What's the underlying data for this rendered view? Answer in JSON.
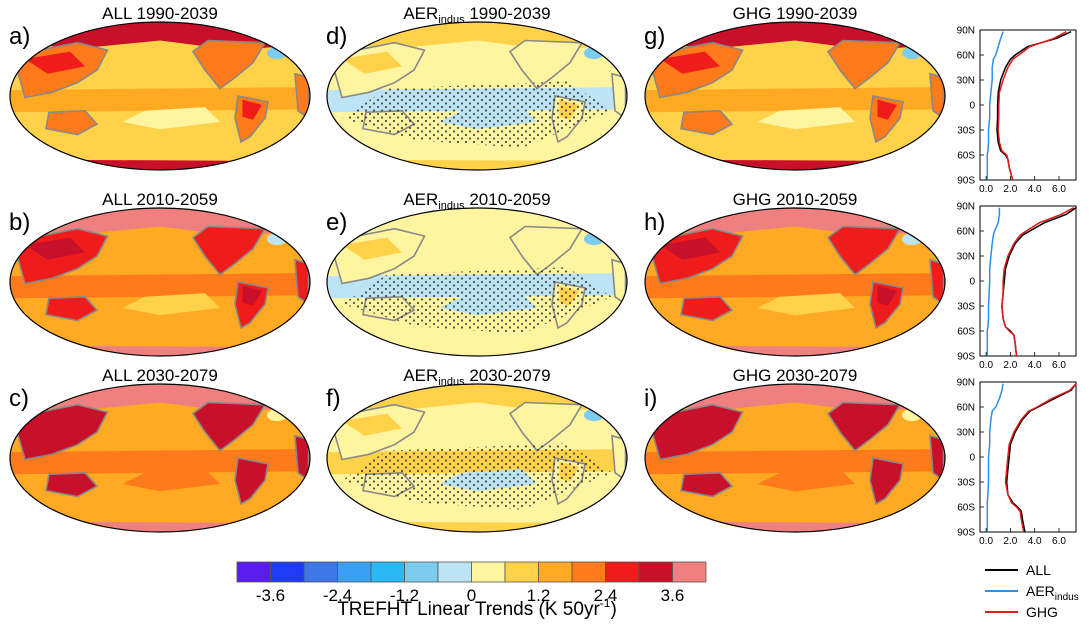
{
  "figure": {
    "panels": [
      {
        "letter": "a)",
        "prefix": "ALL",
        "sub": "",
        "period": "1990-2039",
        "style": "all1"
      },
      {
        "letter": "b)",
        "prefix": "ALL",
        "sub": "",
        "period": "2010-2059",
        "style": "all2"
      },
      {
        "letter": "c)",
        "prefix": "ALL",
        "sub": "",
        "period": "2030-2079",
        "style": "all3"
      },
      {
        "letter": "d)",
        "prefix": "AER",
        "sub": "indus",
        "period": "1990-2039",
        "style": "aer1"
      },
      {
        "letter": "e)",
        "prefix": "AER",
        "sub": "indus",
        "period": "2010-2059",
        "style": "aer2"
      },
      {
        "letter": "f)",
        "prefix": "AER",
        "sub": "indus",
        "period": "2030-2079",
        "style": "aer3"
      },
      {
        "letter": "g)",
        "prefix": "GHG",
        "sub": "",
        "period": "1990-2039",
        "style": "ghg1"
      },
      {
        "letter": "h)",
        "prefix": "GHG",
        "sub": "",
        "period": "2010-2059",
        "style": "ghg2"
      },
      {
        "letter": "i)",
        "prefix": "GHG",
        "sub": "",
        "period": "2030-2079",
        "style": "ghg3"
      }
    ],
    "colorbar": {
      "colors": [
        "#5a1df0",
        "#1e3cf5",
        "#3f78e6",
        "#3a9ff0",
        "#2ab8f5",
        "#7ecbf0",
        "#bde4f4",
        "#fff5a0",
        "#ffd24a",
        "#ffaa22",
        "#ff7a1a",
        "#f01b1b",
        "#c8102a",
        "#f08080"
      ],
      "tick_labels": [
        "-3.6",
        "-2.4",
        "-1.2",
        "0",
        "1.2",
        "2.4",
        "3.6"
      ],
      "title_main": "TREFHT Linear Trends (K 50yr",
      "title_sup": "-1",
      "title_close": ")"
    },
    "legend": [
      {
        "label": "ALL",
        "sub": "",
        "color": "#000000"
      },
      {
        "label": "AER",
        "sub": "indus",
        "color": "#2d8fe6"
      },
      {
        "label": "GHG",
        "sub": "",
        "color": "#e01c1c"
      }
    ]
  },
  "chart_data": [
    {
      "type": "line",
      "title": "",
      "xlabel": "",
      "ylabel": "",
      "ytick_labels": [
        "90N",
        "60N",
        "30N",
        "0",
        "30S",
        "60S",
        "90S"
      ],
      "xtick_labels": [
        "0.0",
        "2.0",
        "4.0",
        "6.0"
      ],
      "xlim": [
        -0.5,
        7.4
      ],
      "ylim": [
        -90,
        90
      ],
      "grid": false,
      "latitudes": [
        -90,
        -75,
        -65,
        -60,
        -55,
        -45,
        -30,
        -15,
        0,
        15,
        30,
        45,
        55,
        60,
        70,
        80,
        88
      ],
      "series": [
        {
          "name": "ALL",
          "values": [
            2.2,
            1.9,
            1.8,
            1.6,
            1.2,
            1.0,
            0.9,
            0.95,
            0.95,
            1.0,
            1.2,
            1.6,
            2.0,
            2.4,
            3.4,
            5.8,
            7.0
          ]
        },
        {
          "name": "AER",
          "values": [
            0.1,
            0.1,
            0.1,
            0.1,
            0.15,
            0.2,
            0.2,
            0.3,
            0.3,
            0.4,
            0.5,
            0.5,
            0.6,
            0.8,
            1.0,
            1.2,
            1.4
          ]
        },
        {
          "name": "GHG",
          "values": [
            2.2,
            1.9,
            1.8,
            1.7,
            1.3,
            1.1,
            1.0,
            1.05,
            1.05,
            1.1,
            1.4,
            1.8,
            2.2,
            2.7,
            3.6,
            5.6,
            6.6
          ]
        }
      ]
    },
    {
      "type": "line",
      "title": "",
      "xlabel": "",
      "ylabel": "",
      "ytick_labels": [
        "90N",
        "60N",
        "30N",
        "0",
        "30S",
        "60S",
        "90S"
      ],
      "xtick_labels": [
        "0.0",
        "2.0",
        "4.0",
        "6.0"
      ],
      "xlim": [
        -0.5,
        7.4
      ],
      "ylim": [
        -90,
        90
      ],
      "grid": false,
      "latitudes": [
        -90,
        -75,
        -65,
        -60,
        -55,
        -45,
        -30,
        -15,
        0,
        15,
        30,
        45,
        55,
        60,
        70,
        80,
        88
      ],
      "series": [
        {
          "name": "ALL",
          "values": [
            2.5,
            2.4,
            2.3,
            2.0,
            1.6,
            1.4,
            1.3,
            1.4,
            1.5,
            1.6,
            1.9,
            2.4,
            3.0,
            3.6,
            4.8,
            6.6,
            7.4
          ]
        },
        {
          "name": "AER",
          "values": [
            0.1,
            0.1,
            0.1,
            0.1,
            0.15,
            0.2,
            0.2,
            0.25,
            0.3,
            0.3,
            0.4,
            0.5,
            0.6,
            0.7,
            1.0,
            1.1,
            1.1
          ]
        },
        {
          "name": "GHG",
          "values": [
            2.5,
            2.4,
            2.3,
            1.9,
            1.6,
            1.4,
            1.3,
            1.4,
            1.4,
            1.5,
            1.8,
            2.3,
            2.8,
            3.3,
            4.4,
            6.2,
            7.2
          ]
        }
      ]
    },
    {
      "type": "line",
      "title": "",
      "xlabel": "",
      "ylabel": "",
      "ytick_labels": [
        "90N",
        "60N",
        "30N",
        "0",
        "30S",
        "60S",
        "90S"
      ],
      "xtick_labels": [
        "0.0",
        "2.0",
        "4.0",
        "6.0"
      ],
      "xlim": [
        -0.5,
        7.4
      ],
      "ylim": [
        -90,
        90
      ],
      "grid": false,
      "latitudes": [
        -90,
        -75,
        -65,
        -60,
        -55,
        -45,
        -30,
        -15,
        0,
        15,
        30,
        45,
        55,
        60,
        70,
        80,
        88
      ],
      "series": [
        {
          "name": "ALL",
          "values": [
            3.2,
            3.0,
            2.9,
            2.6,
            2.2,
            1.8,
            1.7,
            1.8,
            1.9,
            2.0,
            2.4,
            3.0,
            3.6,
            4.3,
            5.6,
            7.0,
            7.4
          ]
        },
        {
          "name": "AER",
          "values": [
            0.1,
            0.1,
            0.1,
            0.1,
            0.1,
            0.15,
            0.2,
            0.2,
            0.2,
            0.3,
            0.3,
            0.4,
            0.5,
            0.8,
            1.1,
            1.3,
            1.4
          ]
        },
        {
          "name": "GHG",
          "values": [
            3.1,
            2.9,
            2.8,
            2.5,
            2.1,
            1.8,
            1.6,
            1.7,
            1.8,
            1.9,
            2.3,
            2.9,
            3.5,
            4.2,
            5.4,
            6.9,
            7.4
          ]
        }
      ]
    }
  ]
}
